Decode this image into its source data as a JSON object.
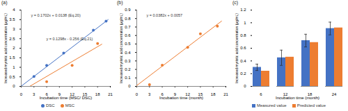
{
  "chart_data": [
    {
      "type": "scatter",
      "title": "(a)",
      "x_label": "Incubation time (MSC/ DSC)",
      "y_label": "Increased myristic acid concentration (μg/mL)",
      "xlim": [
        0,
        21
      ],
      "xticks": [
        0,
        3,
        6,
        9,
        12,
        15,
        18,
        21
      ],
      "ylim": [
        0,
        4
      ],
      "yticks": [
        0,
        0.5,
        1,
        1.5,
        2,
        2.5,
        3,
        3.5,
        4
      ],
      "grid": false,
      "legend": "bottom",
      "series": [
        {
          "name": "DSC",
          "color": "#4472c4",
          "marker": "circle",
          "x": [
            3,
            6,
            10,
            17,
            20
          ],
          "values": [
            0.52,
            1.1,
            1.75,
            2.95,
            3.42
          ],
          "trendline": {
            "x": [
              0,
              20.5
            ],
            "values": [
              0.01,
              3.5
            ]
          }
        },
        {
          "name": "MSC",
          "color": "#ed7d31",
          "marker": "circle",
          "x": [
            6,
            12,
            18
          ],
          "values": [
            0.25,
            1.1,
            2.25
          ],
          "trendline": {
            "x": [
              2,
              19
            ],
            "values": [
              0.0,
              2.21
            ]
          }
        }
      ],
      "annotations": [
        {
          "text": "y = 0.1702x + 0.0138 (Eq.20)",
          "color": "#333333"
        },
        {
          "text": "y = 0.1298x - 0.256 (Eq.21)",
          "color": "#333333"
        }
      ]
    },
    {
      "type": "scatter",
      "title": "(b)",
      "x_label": "Incubation time (month)",
      "y_label": "Increased myristic acid concentration (μg/mL)",
      "xlim": [
        0,
        21
      ],
      "xticks": [
        0,
        3,
        6,
        9,
        12,
        15,
        18,
        21
      ],
      "ylim": [
        0,
        0.9
      ],
      "yticks": [
        0,
        0.1,
        0.2,
        0.3,
        0.4,
        0.5,
        0.6,
        0.7,
        0.8,
        0.9
      ],
      "grid": false,
      "series": [
        {
          "color": "#ed7d31",
          "marker": "circle",
          "x": [
            3,
            6,
            12,
            15,
            19
          ],
          "values": [
            0.02,
            0.25,
            0.46,
            0.62,
            0.71
          ],
          "trendline": {
            "x": [
              0,
              20
            ],
            "values": [
              0.01,
              0.77
            ]
          }
        }
      ],
      "annotations": [
        {
          "text": "y = 0.0382x + 0.0057",
          "color": "#333333"
        }
      ]
    },
    {
      "type": "bar",
      "title": "(c)",
      "x_label": "Incubation time (month)",
      "y_label": "Increased myristic acid concentration (μg/mL)",
      "categories": [
        "6",
        "12",
        "18",
        "24"
      ],
      "ylim": [
        0,
        1.2
      ],
      "yticks": [
        0,
        0.2,
        0.4,
        0.6,
        0.8,
        1,
        1.2
      ],
      "grid": false,
      "legend": "bottom",
      "series": [
        {
          "name": "Measured value",
          "color": "#4472c4",
          "values": [
            0.3,
            0.45,
            0.72,
            0.91
          ],
          "errors": [
            0.05,
            0.12,
            0.1,
            0.1
          ]
        },
        {
          "name": "Predicted value",
          "color": "#ed7d31",
          "values": [
            0.24,
            0.46,
            0.69,
            0.92
          ]
        }
      ]
    }
  ]
}
